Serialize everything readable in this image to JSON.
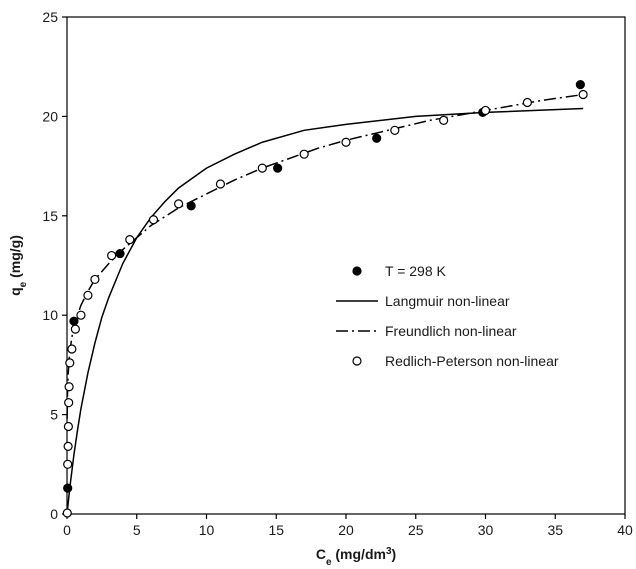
{
  "chart_data": {
    "type": "scatter",
    "title": "",
    "xlabel": {
      "main": "C",
      "sub": "e",
      "units": " (mg/dm",
      "sup": "3",
      "close": ")"
    },
    "ylabel": {
      "main": "q",
      "sub": "e",
      "units": " (mg/g)"
    },
    "xlim": [
      0,
      40
    ],
    "ylim": [
      0,
      25
    ],
    "xticks": [
      0,
      5,
      10,
      15,
      20,
      25,
      30,
      35,
      40
    ],
    "yticks": [
      0,
      5,
      10,
      15,
      20,
      25
    ],
    "grid": false,
    "legend_position": "center-right",
    "series": [
      {
        "name": "T = 298 K",
        "kind": "scatter",
        "marker": "filled-circle",
        "color": "#000000",
        "points": [
          [
            0.05,
            1.3
          ],
          [
            0.5,
            9.7
          ],
          [
            3.8,
            13.1
          ],
          [
            8.9,
            15.5
          ],
          [
            15.1,
            17.4
          ],
          [
            22.2,
            18.9
          ],
          [
            29.8,
            20.2
          ],
          [
            36.8,
            21.6
          ]
        ]
      },
      {
        "name": "Langmuir non-linear",
        "kind": "line",
        "dash": "solid",
        "color": "#000000",
        "points": [
          [
            0,
            0
          ],
          [
            0.1,
            0.66
          ],
          [
            0.25,
            1.6
          ],
          [
            0.5,
            3.0
          ],
          [
            0.75,
            4.2
          ],
          [
            1.0,
            5.3
          ],
          [
            1.5,
            7.1
          ],
          [
            2.0,
            8.6
          ],
          [
            2.5,
            9.9
          ],
          [
            3.0,
            10.9
          ],
          [
            4.0,
            12.6
          ],
          [
            5.0,
            13.9
          ],
          [
            6.0,
            14.9
          ],
          [
            7.0,
            15.7
          ],
          [
            8.0,
            16.4
          ],
          [
            10.0,
            17.4
          ],
          [
            12.0,
            18.1
          ],
          [
            14.0,
            18.7
          ],
          [
            17.0,
            19.3
          ],
          [
            20.0,
            19.6
          ],
          [
            25.0,
            20.0
          ],
          [
            30.0,
            20.2
          ],
          [
            37.0,
            20.4
          ]
        ]
      },
      {
        "name": "Freundlich non-linear",
        "kind": "line",
        "dash": "dash-dot",
        "color": "#000000",
        "points": [
          [
            0.01,
            4.8
          ],
          [
            0.03,
            5.9
          ],
          [
            0.08,
            7.0
          ],
          [
            0.2,
            8.2
          ],
          [
            0.4,
            9.1
          ],
          [
            0.7,
            9.9
          ],
          [
            1.0,
            10.5
          ],
          [
            1.5,
            11.2
          ],
          [
            2.0,
            11.8
          ],
          [
            3.0,
            12.6
          ],
          [
            4.0,
            13.3
          ],
          [
            5.0,
            13.9
          ],
          [
            6.0,
            14.5
          ],
          [
            8.0,
            15.4
          ],
          [
            10.0,
            16.1
          ],
          [
            12.0,
            16.8
          ],
          [
            14.0,
            17.4
          ],
          [
            16.0,
            17.9
          ],
          [
            18.0,
            18.4
          ],
          [
            20.0,
            18.8
          ],
          [
            23.0,
            19.3
          ],
          [
            26.0,
            19.8
          ],
          [
            30.0,
            20.3
          ],
          [
            34.0,
            20.8
          ],
          [
            37.0,
            21.1
          ]
        ]
      },
      {
        "name": "Redlich-Peterson non-linear",
        "kind": "scatter",
        "marker": "open-circle",
        "color": "#000000",
        "points": [
          [
            0.02,
            0.05
          ],
          [
            0.05,
            2.5
          ],
          [
            0.08,
            3.4
          ],
          [
            0.1,
            4.4
          ],
          [
            0.12,
            5.6
          ],
          [
            0.15,
            6.4
          ],
          [
            0.2,
            7.6
          ],
          [
            0.35,
            8.3
          ],
          [
            0.6,
            9.3
          ],
          [
            1.0,
            10.0
          ],
          [
            1.5,
            11.0
          ],
          [
            2.0,
            11.8
          ],
          [
            3.2,
            13.0
          ],
          [
            4.5,
            13.8
          ],
          [
            6.2,
            14.8
          ],
          [
            8.0,
            15.6
          ],
          [
            11.0,
            16.6
          ],
          [
            14.0,
            17.4
          ],
          [
            17.0,
            18.1
          ],
          [
            20.0,
            18.7
          ],
          [
            23.5,
            19.3
          ],
          [
            27.0,
            19.8
          ],
          [
            30.0,
            20.3
          ],
          [
            33.0,
            20.7
          ],
          [
            37.0,
            21.1
          ]
        ]
      }
    ]
  }
}
